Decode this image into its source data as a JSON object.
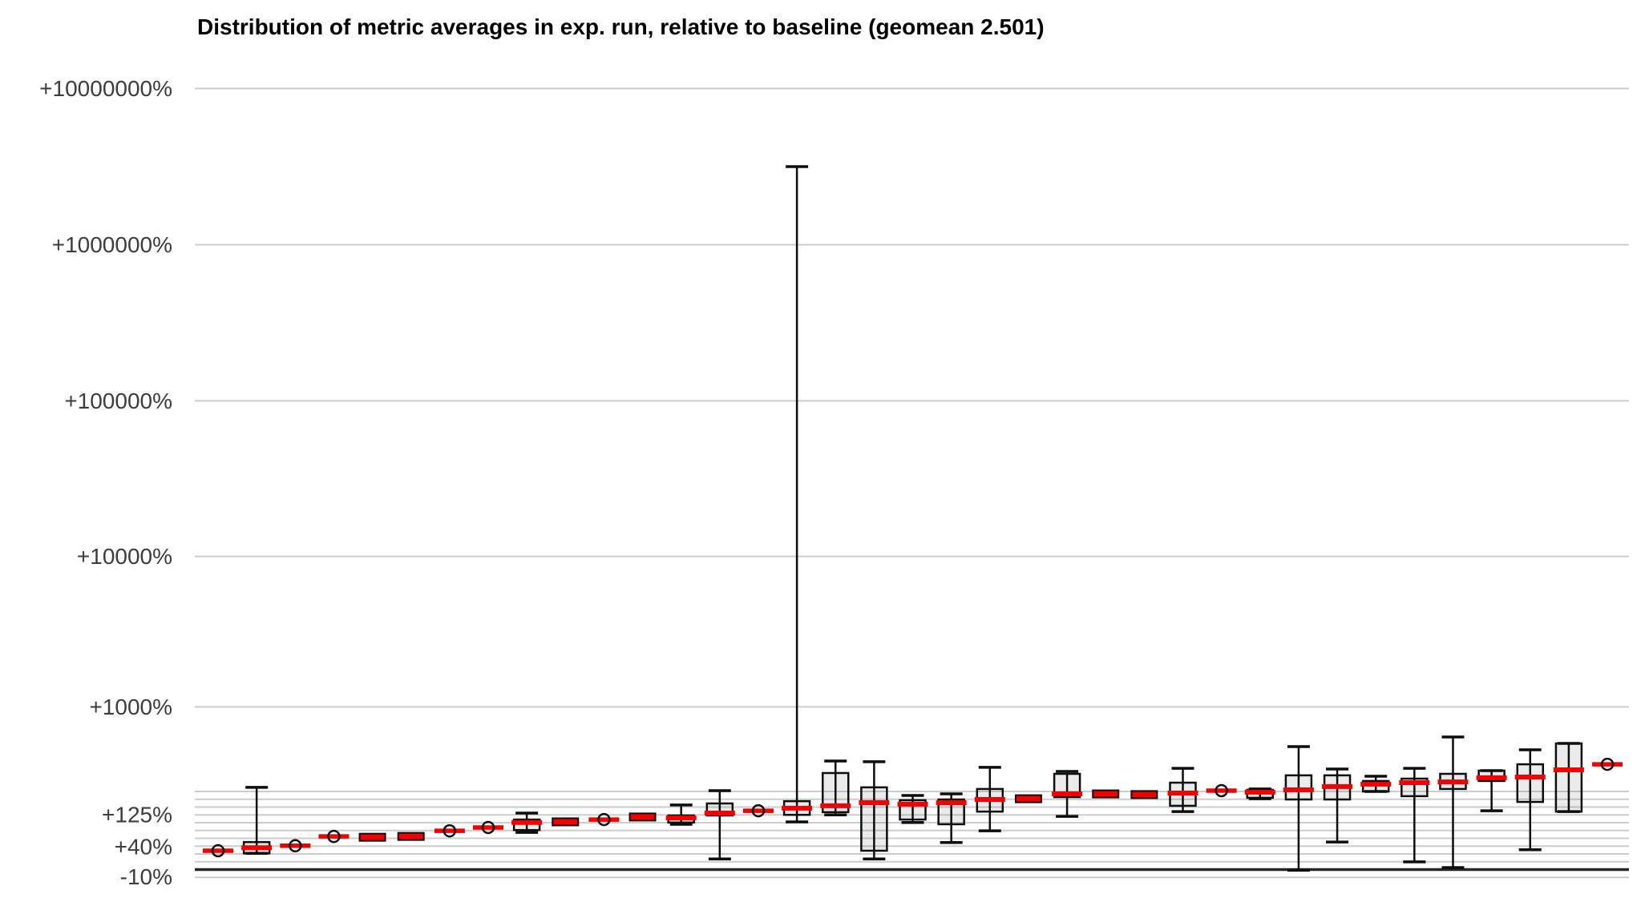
{
  "title": "Distribution of metric averages in exp. run, relative to baseline (geomean 2.501)",
  "colors": {
    "median_line": "#f10000",
    "box_fill": "rgba(0,0,0,0.08)",
    "box_border": "#0d0d0d",
    "gridline": "#cccccc",
    "zero_baseline": "#262626",
    "tick_label": "#3d3d3d",
    "title": "#000000"
  },
  "chart_data": {
    "type": "boxplot",
    "title": "Distribution of metric averages in exp. run, relative to baseline (geomean 2.501)",
    "geomean": 2.501,
    "x_axis": {
      "labels_visible": false,
      "n_groups": 37
    },
    "y_axis": {
      "unit": "percent relative to baseline",
      "scale": "log10(1 + pct/100)",
      "tick_labels": [
        {
          "label": "+10000000%",
          "pct": 10000000
        },
        {
          "label": "+1000000%",
          "pct": 1000000
        },
        {
          "label": "+100000%",
          "pct": 100000
        },
        {
          "label": "+10000%",
          "pct": 10000
        },
        {
          "label": "+1000%",
          "pct": 1000
        },
        {
          "label": "+125%",
          "pct": 125
        },
        {
          "label": "+40%",
          "pct": 40
        },
        {
          "label": "-10%",
          "pct": -10
        }
      ],
      "major_gridline_pcts": [
        10000000,
        1000000,
        100000,
        10000,
        1000
      ],
      "minor_gridline_pcts": [
        -10.9,
        12.2,
        25.9,
        41.3,
        58.5,
        77.8,
        99.5,
        123.9,
        151.2,
        181.8,
        216.2
      ],
      "baseline_pct": 0
    },
    "grid": true,
    "legend": "none",
    "series": [
      {
        "type": "dot",
        "med": 32
      },
      {
        "type": "box",
        "lo": 27,
        "q1": 27,
        "med": 38,
        "q3": 50,
        "hi": 236
      },
      {
        "type": "dot",
        "med": 42
      },
      {
        "type": "dot",
        "med": 63
      },
      {
        "type": "flat",
        "med": 61
      },
      {
        "type": "flat",
        "med": 63
      },
      {
        "type": "dot",
        "med": 77
      },
      {
        "type": "dot",
        "med": 86
      },
      {
        "type": "box",
        "lo": 73,
        "q1": 79,
        "med": 100,
        "q3": 109,
        "hi": 130
      },
      {
        "type": "flat",
        "med": 102
      },
      {
        "type": "dot",
        "med": 109
      },
      {
        "type": "flat",
        "med": 117
      },
      {
        "type": "box",
        "lo": 95,
        "q1": 100,
        "med": 114,
        "q3": 122,
        "hi": 159
      },
      {
        "type": "box",
        "lo": 17,
        "q1": 122,
        "med": 130,
        "q3": 165,
        "hi": 220
      },
      {
        "type": "dot",
        "med": 138
      },
      {
        "type": "box",
        "lo": 102,
        "q1": 124,
        "med": 147,
        "q3": 174,
        "hi": 3162000
      },
      {
        "type": "box",
        "lo": 124,
        "q1": 133,
        "med": 156,
        "q3": 315,
        "hi": 395
      },
      {
        "type": "box",
        "lo": 17,
        "q1": 32,
        "med": 168,
        "q3": 236,
        "hi": 390
      },
      {
        "type": "box",
        "lo": 100,
        "q1": 109,
        "med": 162,
        "q3": 178,
        "hi": 198
      },
      {
        "type": "box",
        "lo": 49,
        "q1": 95,
        "med": 168,
        "q3": 181,
        "hi": 205
      },
      {
        "type": "box",
        "lo": 77,
        "q1": 135,
        "med": 181,
        "q3": 228,
        "hi": 351
      },
      {
        "type": "flat",
        "med": 184
      },
      {
        "type": "box",
        "lo": 119,
        "q1": 191,
        "med": 205,
        "q3": 310,
        "hi": 325
      },
      {
        "type": "flat",
        "med": 205
      },
      {
        "type": "flat",
        "med": 202
      },
      {
        "type": "box",
        "lo": 135,
        "q1": 156,
        "med": 209,
        "q3": 260,
        "hi": 345
      },
      {
        "type": "dot",
        "med": 220
      },
      {
        "type": "box",
        "lo": 184,
        "q1": 188,
        "med": 213,
        "q3": 224,
        "hi": 228
      },
      {
        "type": "box",
        "lo": -1,
        "q1": 181,
        "med": 224,
        "q3": 301,
        "hi": 513
      },
      {
        "type": "box",
        "lo": 50,
        "q1": 181,
        "med": 240,
        "q3": 301,
        "hi": 340
      },
      {
        "type": "box",
        "lo": 216,
        "q1": 216,
        "med": 252,
        "q3": 269,
        "hi": 296
      },
      {
        "type": "box",
        "lo": 12,
        "q1": 195,
        "med": 260,
        "q3": 282,
        "hi": 345
      },
      {
        "type": "box",
        "lo": 3,
        "q1": 228,
        "med": 264,
        "q3": 310,
        "hi": 606
      },
      {
        "type": "box",
        "lo": 138,
        "q1": 269,
        "med": 287,
        "q3": 330,
        "hi": 330
      },
      {
        "type": "box",
        "lo": 34,
        "q1": 171,
        "med": 291,
        "q3": 372,
        "hi": 484
      },
      {
        "type": "box",
        "lo": 135,
        "q1": 135,
        "med": 335,
        "q3": 542,
        "hi": 542
      },
      {
        "type": "dot",
        "med": 372
      }
    ]
  }
}
